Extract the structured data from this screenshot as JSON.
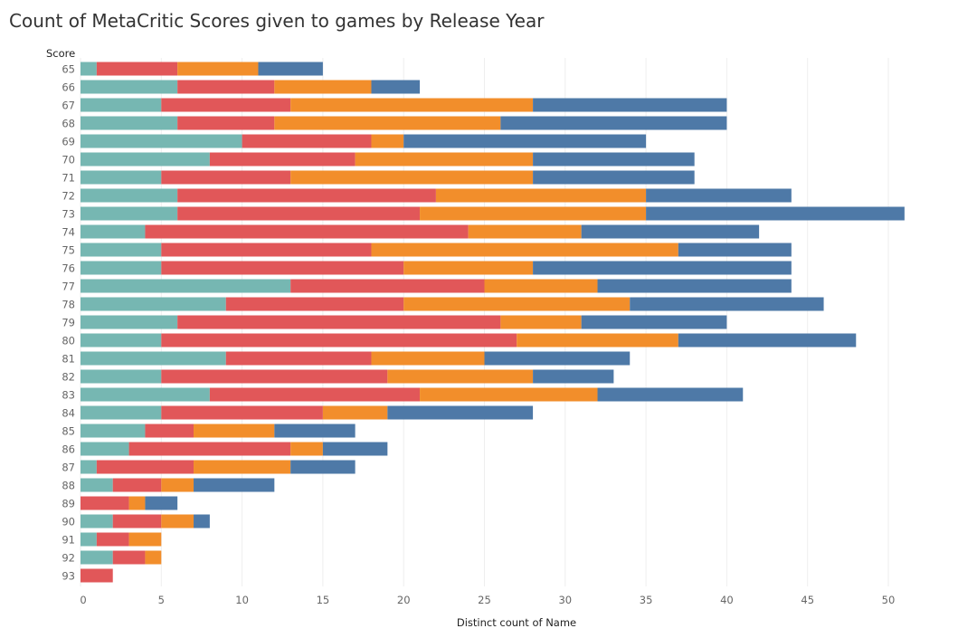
{
  "chart_data": {
    "type": "bar",
    "orientation": "horizontal",
    "stacked": true,
    "title": "Count of MetaCritic Scores given to games by Release Year",
    "xlabel": "Distinct count of Name",
    "ylabel": "Score",
    "xlim": [
      0,
      54
    ],
    "xticks": [
      "0",
      "5",
      "10",
      "15",
      "20",
      "25",
      "30",
      "35",
      "40",
      "45",
      "50"
    ],
    "grid": "vertical",
    "categories": [
      "65",
      "66",
      "67",
      "68",
      "69",
      "70",
      "71",
      "72",
      "73",
      "74",
      "75",
      "76",
      "77",
      "78",
      "79",
      "80",
      "81",
      "82",
      "83",
      "84",
      "85",
      "86",
      "87",
      "88",
      "89",
      "90",
      "91",
      "92",
      "93"
    ],
    "series": [
      {
        "color": "#76b7b2",
        "values": [
          1,
          6,
          5,
          6,
          10,
          8,
          5,
          6,
          6,
          4,
          5,
          5,
          13,
          9,
          6,
          5,
          9,
          5,
          8,
          5,
          4,
          3,
          1,
          2,
          0,
          2,
          1,
          2,
          0
        ]
      },
      {
        "color": "#e15759",
        "values": [
          5,
          6,
          8,
          6,
          8,
          9,
          8,
          16,
          15,
          20,
          13,
          15,
          12,
          11,
          20,
          22,
          9,
          14,
          13,
          10,
          3,
          10,
          6,
          3,
          3,
          3,
          2,
          2,
          2
        ]
      },
      {
        "color": "#f28e2b",
        "values": [
          5,
          6,
          15,
          14,
          2,
          11,
          15,
          13,
          14,
          7,
          19,
          8,
          7,
          14,
          5,
          10,
          7,
          9,
          11,
          4,
          5,
          2,
          6,
          2,
          1,
          2,
          2,
          1,
          0
        ]
      },
      {
        "color": "#4e79a7",
        "values": [
          4,
          3,
          12,
          14,
          15,
          10,
          10,
          9,
          16,
          11,
          7,
          16,
          12,
          12,
          9,
          11,
          9,
          5,
          9,
          9,
          5,
          4,
          4,
          5,
          2,
          1,
          0,
          0,
          0
        ]
      }
    ]
  }
}
